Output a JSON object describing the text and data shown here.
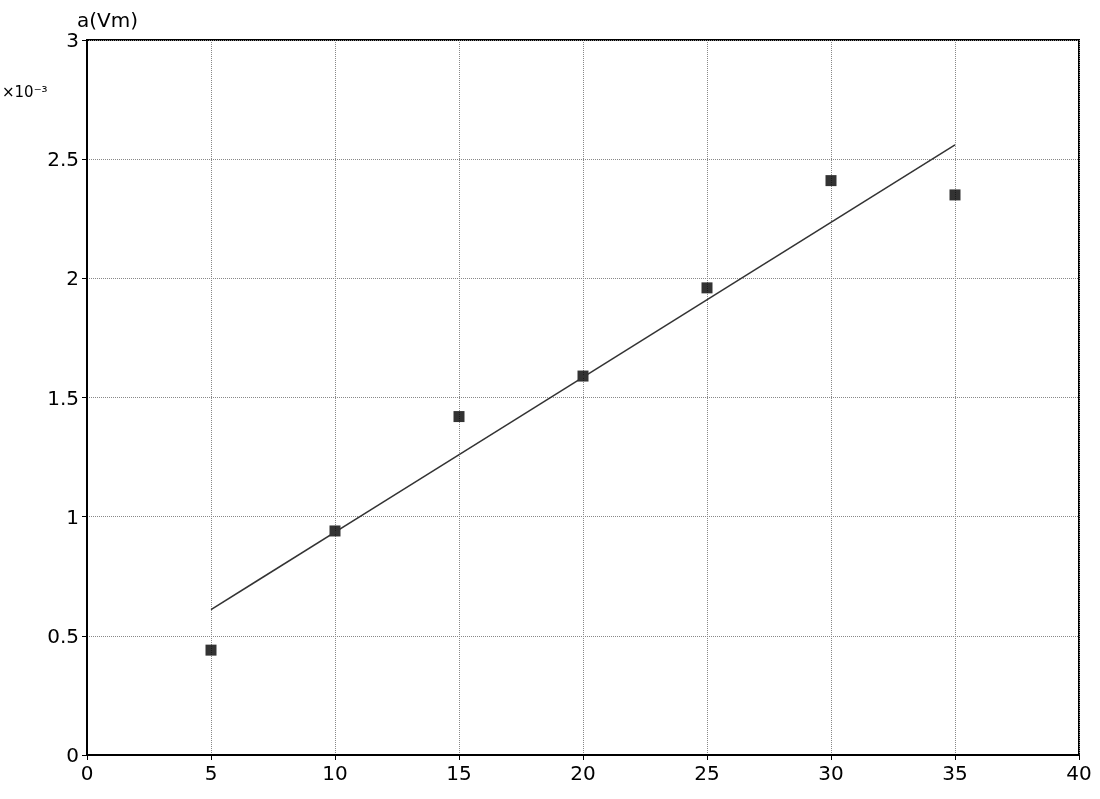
{
  "chart_data": {
    "type": "scatter",
    "ylabel": "a(Vm)",
    "annotations": [
      "×10⁻³"
    ],
    "grid": true,
    "xlim": [
      0,
      40
    ],
    "xticks": [
      0,
      5,
      10,
      15,
      20,
      25,
      30,
      35,
      40
    ],
    "ylim": [
      0,
      3
    ],
    "yticks": [
      0,
      0.5,
      1,
      1.5,
      2,
      2.5,
      3
    ],
    "series": [
      {
        "marker": "square",
        "color": "#000000",
        "x": [
          5,
          10,
          15,
          20,
          25,
          30,
          35
        ],
        "values": [
          0.44,
          0.94,
          1.42,
          1.59,
          1.96,
          2.41,
          2.35
        ]
      },
      {
        "type": "line",
        "marker": "none",
        "color": "#333333",
        "x": [
          5,
          35
        ],
        "values": [
          0.61,
          2.56
        ]
      }
    ]
  }
}
